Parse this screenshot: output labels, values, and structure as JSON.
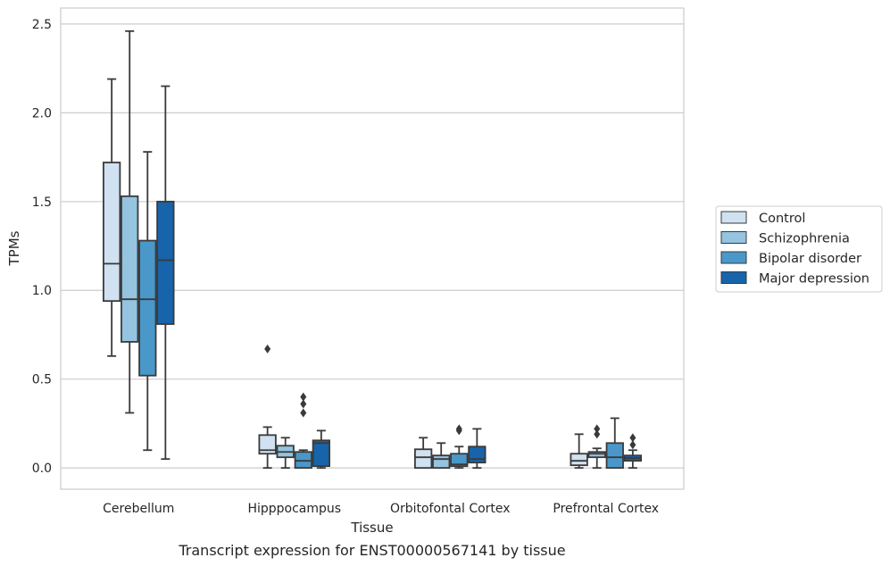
{
  "chart_data": {
    "type": "box",
    "xlabel": "Tissue",
    "ylabel": "TPMs",
    "caption": "Transcript expression for ENST00000567141 by tissue",
    "ylim": [
      -0.12,
      2.59
    ],
    "yticks": [
      "0.0",
      "0.5",
      "1.0",
      "1.5",
      "2.0",
      "2.5"
    ],
    "grid": "horizontal",
    "legend_position": "right",
    "categories": [
      "Cerebellum",
      "Hipppocampus",
      "Orbitofontal Cortex",
      "Prefrontal Cortex"
    ],
    "series": [
      {
        "name": "Control",
        "color": "#d0e1f2",
        "boxes": [
          {
            "whisker_low": 0.63,
            "q1": 0.94,
            "median": 1.15,
            "q3": 1.72,
            "whisker_high": 2.19,
            "outliers": []
          },
          {
            "whisker_low": 0.0,
            "q1": 0.08,
            "median": 0.1,
            "q3": 0.185,
            "whisker_high": 0.23,
            "outliers": [
              0.67
            ]
          },
          {
            "whisker_low": 0.0,
            "q1": 0.0,
            "median": 0.06,
            "q3": 0.105,
            "whisker_high": 0.17,
            "outliers": []
          },
          {
            "whisker_low": 0.0,
            "q1": 0.015,
            "median": 0.04,
            "q3": 0.08,
            "whisker_high": 0.19,
            "outliers": []
          }
        ]
      },
      {
        "name": "Schizophrenia",
        "color": "#94c4df",
        "boxes": [
          {
            "whisker_low": 0.31,
            "q1": 0.71,
            "median": 0.95,
            "q3": 1.53,
            "whisker_high": 2.46,
            "outliers": []
          },
          {
            "whisker_low": 0.0,
            "q1": 0.06,
            "median": 0.09,
            "q3": 0.125,
            "whisker_high": 0.17,
            "outliers": []
          },
          {
            "whisker_low": 0.0,
            "q1": 0.0,
            "median": 0.05,
            "q3": 0.07,
            "whisker_high": 0.14,
            "outliers": []
          },
          {
            "whisker_low": 0.0,
            "q1": 0.06,
            "median": 0.08,
            "q3": 0.09,
            "whisker_high": 0.11,
            "outliers": [
              0.19,
              0.22
            ]
          }
        ]
      },
      {
        "name": "Bipolar disorder",
        "color": "#4a98c9",
        "boxes": [
          {
            "whisker_low": 0.1,
            "q1": 0.52,
            "median": 0.95,
            "q3": 1.28,
            "whisker_high": 1.78,
            "outliers": []
          },
          {
            "whisker_low": 0.0,
            "q1": 0.0,
            "median": 0.04,
            "q3": 0.09,
            "whisker_high": 0.1,
            "outliers": [
              0.31,
              0.36,
              0.4
            ]
          },
          {
            "whisker_low": 0.0,
            "q1": 0.01,
            "median": 0.02,
            "q3": 0.08,
            "whisker_high": 0.12,
            "outliers": [
              0.21,
              0.22
            ]
          },
          {
            "whisker_low": 0.0,
            "q1": 0.0,
            "median": 0.06,
            "q3": 0.14,
            "whisker_high": 0.28,
            "outliers": []
          }
        ]
      },
      {
        "name": "Major depression",
        "color": "#1764ab",
        "boxes": [
          {
            "whisker_low": 0.05,
            "q1": 0.81,
            "median": 1.17,
            "q3": 1.5,
            "whisker_high": 2.15,
            "outliers": []
          },
          {
            "whisker_low": 0.0,
            "q1": 0.01,
            "median": 0.14,
            "q3": 0.155,
            "whisker_high": 0.21,
            "outliers": []
          },
          {
            "whisker_low": 0.0,
            "q1": 0.03,
            "median": 0.05,
            "q3": 0.12,
            "whisker_high": 0.22,
            "outliers": []
          },
          {
            "whisker_low": 0.0,
            "q1": 0.04,
            "median": 0.055,
            "q3": 0.07,
            "whisker_high": 0.1,
            "outliers": [
              0.13,
              0.17
            ]
          }
        ]
      }
    ]
  }
}
